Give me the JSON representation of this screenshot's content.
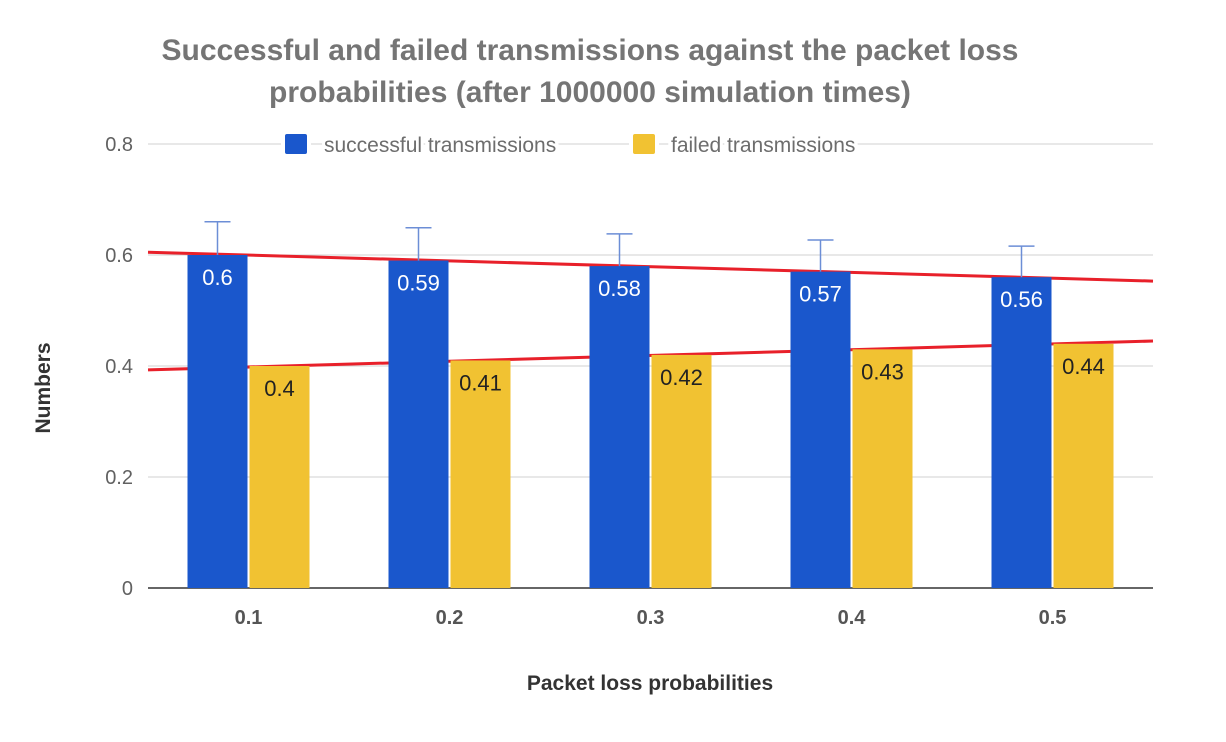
{
  "chart_data": {
    "type": "bar",
    "title": "Successful and failed transmissions against the packet loss probabilities (after 1000000 simulation times)",
    "xlabel": "Packet loss probabilities",
    "ylabel": "Numbers",
    "categories": [
      "0.1",
      "0.2",
      "0.3",
      "0.4",
      "0.5"
    ],
    "ylim": [
      0,
      0.8
    ],
    "yticks": [
      "0",
      "0.2",
      "0.4",
      "0.6",
      "0.8"
    ],
    "grid": true,
    "legend_position": "top",
    "series": [
      {
        "name": "successful transmissions",
        "color": "#1a57cc",
        "label_color": "#ffffff",
        "values": [
          0.6,
          0.59,
          0.58,
          0.57,
          0.56
        ],
        "labels": [
          "0.6",
          "0.59",
          "0.58",
          "0.57",
          "0.56"
        ],
        "error_upper": [
          0.66,
          0.649,
          0.638,
          0.627,
          0.616
        ]
      },
      {
        "name": "failed transmissions",
        "color": "#f1c232",
        "label_color": "#222222",
        "values": [
          0.4,
          0.41,
          0.42,
          0.43,
          0.44
        ],
        "labels": [
          "0.4",
          "0.41",
          "0.42",
          "0.43",
          "0.44"
        ]
      }
    ],
    "trendlines": [
      {
        "color": "#e8202a",
        "start": 0.605,
        "end": 0.553
      },
      {
        "color": "#e8202a",
        "start": 0.393,
        "end": 0.445
      }
    ]
  }
}
